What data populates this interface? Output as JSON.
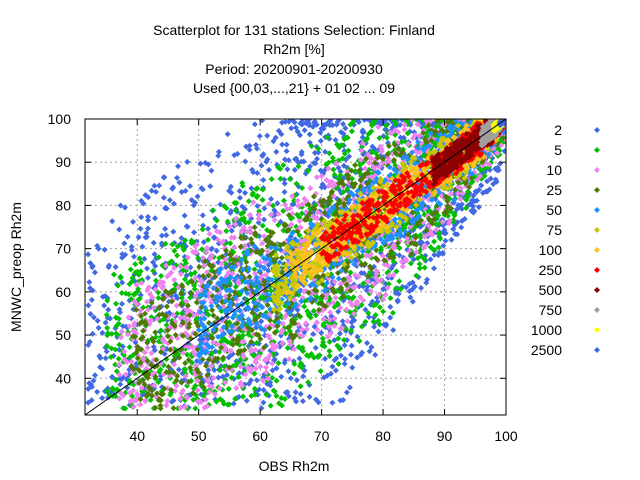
{
  "chart_data": {
    "type": "scatter",
    "title_lines": [
      "Scatterplot for  131 stations Selection: Finland",
      "Rh2m [%]",
      "Period: 20200901-20200930",
      "Used {00,03,...,21} + 01 02 ... 09"
    ],
    "xlabel": "OBS Rh2m",
    "ylabel": "MNWC_preop Rh2m",
    "xlim": [
      31.5,
      100
    ],
    "ylim": [
      31.5,
      100
    ],
    "x_ticks": [
      40,
      50,
      60,
      70,
      80,
      90,
      100
    ],
    "y_ticks": [
      40,
      50,
      60,
      70,
      80,
      90,
      100
    ],
    "grid": true,
    "diagonal_line": true,
    "legend_position": "right",
    "density_classes": [
      {
        "label": "2",
        "color": "#4169e1",
        "half_width": 40,
        "x_start": 32
      },
      {
        "label": "5",
        "color": "#00c000",
        "half_width": 26,
        "x_start": 35
      },
      {
        "label": "10",
        "color": "#ee82ee",
        "half_width": 19,
        "x_start": 37
      },
      {
        "label": "25",
        "color": "#4d7a00",
        "half_width": 14,
        "x_start": 39
      },
      {
        "label": "50",
        "color": "#1e90ff",
        "half_width": 9,
        "x_start": 50
      },
      {
        "label": "75",
        "color": "#c8c800",
        "half_width": 6.5,
        "x_start": 62
      },
      {
        "label": "100",
        "color": "#ffc020",
        "half_width": 5,
        "x_start": 64
      },
      {
        "label": "250",
        "color": "#ff0000",
        "half_width": 4,
        "x_start": 70
      },
      {
        "label": "500",
        "color": "#8b0000",
        "half_width": 3,
        "x_start": 88
      },
      {
        "label": "750",
        "color": "#a0a0a0",
        "half_width": 2,
        "x_start": 96
      },
      {
        "label": "1000",
        "color": "#ffff00",
        "half_width": 0.8,
        "x_start": 98
      },
      {
        "label": "2500",
        "color": "#4169e1",
        "half_width": 0.4,
        "x_start": 99
      }
    ]
  }
}
